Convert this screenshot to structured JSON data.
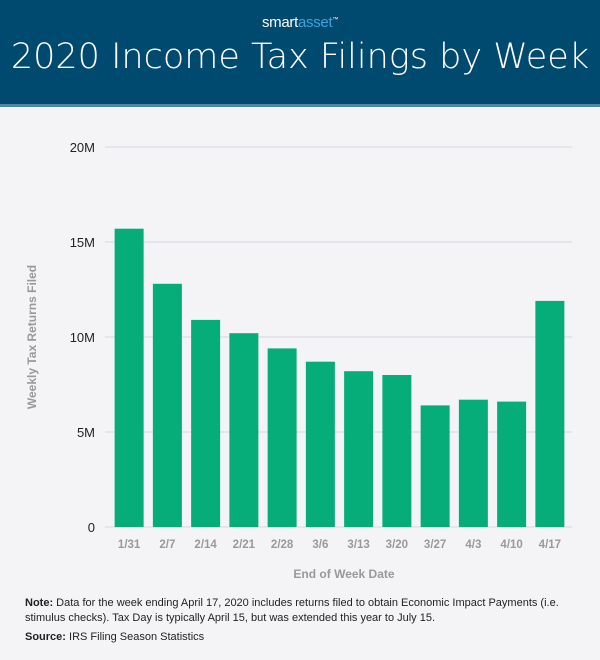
{
  "header": {
    "logo_part1": "smart",
    "logo_part2": "asset",
    "logo_tm": "™",
    "title": "2020 Income Tax Filings by Week"
  },
  "chart_data": {
    "type": "bar",
    "title": "2020 Income Tax Filings by Week",
    "xlabel": "End of Week Date",
    "ylabel": "Weekly Tax Returns Filed",
    "categories": [
      "1/31",
      "2/7",
      "2/14",
      "2/21",
      "2/28",
      "3/6",
      "3/13",
      "3/20",
      "3/27",
      "4/3",
      "4/10",
      "4/17"
    ],
    "values": [
      15.7,
      12.8,
      10.9,
      10.2,
      9.4,
      8.7,
      8.2,
      8.0,
      6.4,
      6.7,
      6.6,
      11.9
    ],
    "unit": "millions",
    "ylim": [
      0,
      20
    ],
    "yticks": [
      0,
      5,
      10,
      15,
      20
    ],
    "ytick_labels": [
      "0",
      "5M",
      "10M",
      "15M",
      "20M"
    ],
    "grid": true,
    "bar_color": "#06ad78"
  },
  "footer": {
    "note_label": "Note:",
    "note_text": " Data for the week ending April 17, 2020 includes returns filed to obtain Economic Impact Payments (i.e. stimulus checks). Tax Day is typically April 15, but was extended this year to July 15.",
    "source_label": "Source:",
    "source_text": " IRS Filing Season Statistics"
  }
}
